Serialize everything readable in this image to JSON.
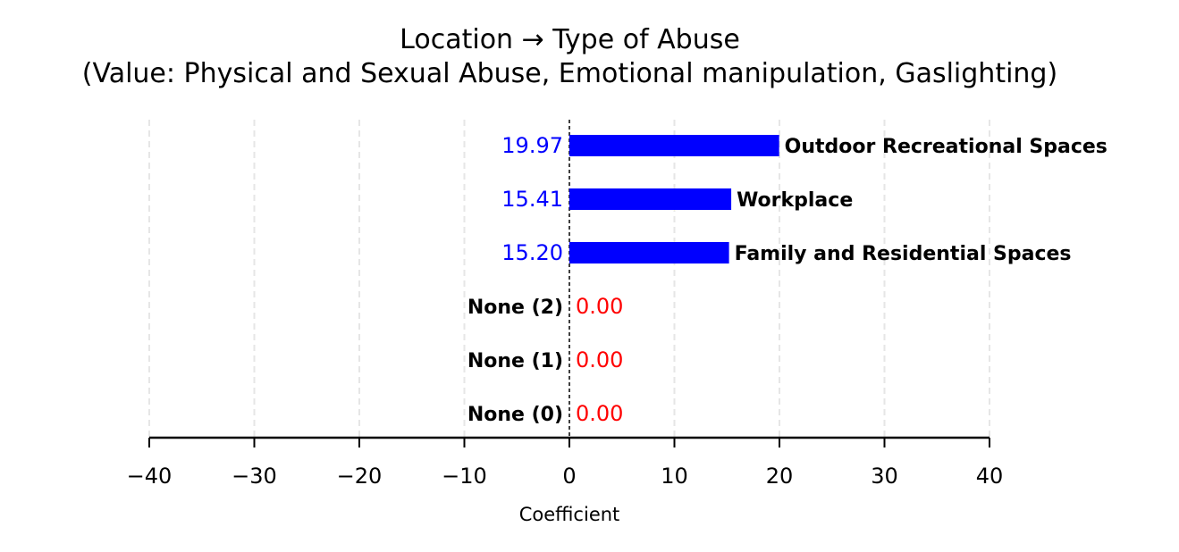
{
  "chart_data": {
    "type": "bar",
    "orientation": "horizontal",
    "title": "Location → Type of Abuse",
    "subtitle": "(Value: Physical and Sexual Abuse, Emotional manipulation, Gaslighting)",
    "xlabel": "Coefficient",
    "ylabel": "",
    "xlim": [
      -40,
      40
    ],
    "xticks": [
      -40,
      -30,
      -20,
      -10,
      0,
      10,
      20,
      30,
      40
    ],
    "xtick_labels": [
      "−40",
      "−30",
      "−20",
      "−10",
      "0",
      "10",
      "20",
      "30",
      "40"
    ],
    "grid": "vertical dashed",
    "categories": [
      "Outdoor Recreational Spaces",
      "Workplace",
      "Family and Residential Spaces",
      "None (2)",
      "None (1)",
      "None (0)"
    ],
    "values": [
      19.97,
      15.41,
      15.2,
      0.0,
      0.0,
      0.0
    ],
    "value_labels": [
      "19.97",
      "15.41",
      "15.20",
      "0.00",
      "0.00",
      "0.00"
    ],
    "colors": {
      "positive_bar": "#0000ff",
      "positive_label": "#0000ff",
      "zero_label": "#ff0000"
    }
  }
}
